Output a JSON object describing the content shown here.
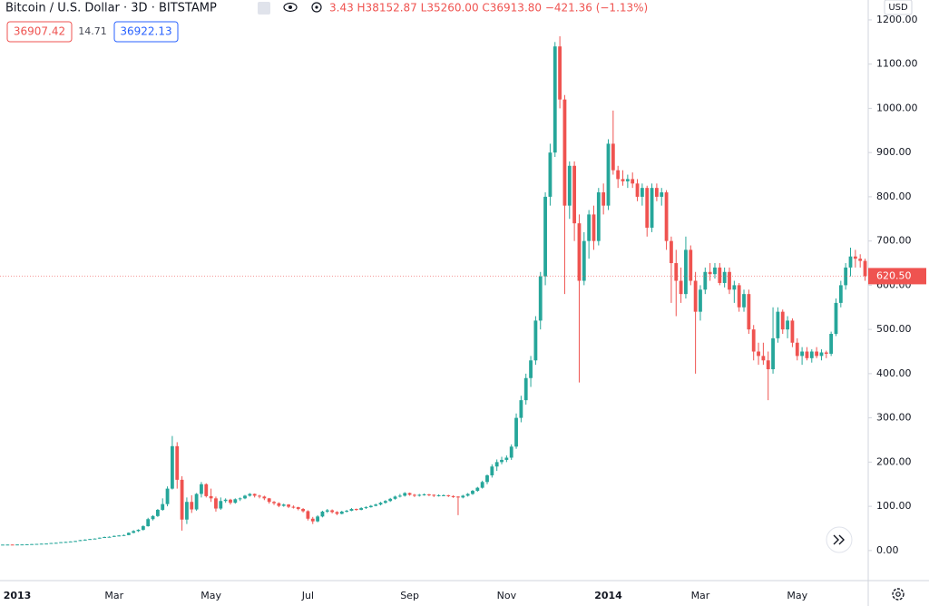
{
  "header": {
    "symbol": "Bitcoin / U.S. Dollar · 3D · BITSTAMP",
    "ohlc": "3.43 H38152.87 L35260.00 C36913.80 −421.36 (−1.13%)",
    "bid": "36907.42",
    "spread": "14.71",
    "ask": "36922.13",
    "currency": "USD"
  },
  "chart_data": {
    "type": "candlestick",
    "up_color": "#26a69a",
    "down_color": "#ef5350",
    "ylim": [
      -68,
      1245
    ],
    "yticks": [
      {
        "value": 0,
        "label": "0.00"
      },
      {
        "value": 100,
        "label": "100.00"
      },
      {
        "value": 200,
        "label": "200.00"
      },
      {
        "value": 300,
        "label": "300.00"
      },
      {
        "value": 400,
        "label": "400.00"
      },
      {
        "value": 500,
        "label": "500.00"
      },
      {
        "value": 600,
        "label": "600.00"
      },
      {
        "value": 700,
        "label": "700.00"
      },
      {
        "value": 800,
        "label": "800.00"
      },
      {
        "value": 900,
        "label": "900.00"
      },
      {
        "value": 1000,
        "label": "1000.00"
      },
      {
        "value": 1100,
        "label": "1100.00"
      },
      {
        "value": 1200,
        "label": "1200.00"
      }
    ],
    "last_price": {
      "value": 620.5,
      "label": "620.50"
    },
    "categories": [
      null,
      null,
      null,
      "2013",
      null,
      null,
      null,
      null,
      null,
      null,
      null,
      null,
      null,
      null,
      null,
      null,
      null,
      null,
      null,
      null,
      null,
      null,
      null,
      "Mar",
      null,
      null,
      null,
      null,
      null,
      null,
      null,
      null,
      null,
      null,
      null,
      null,
      null,
      null,
      null,
      null,
      null,
      null,
      null,
      "May",
      null,
      null,
      null,
      null,
      null,
      null,
      null,
      null,
      null,
      null,
      null,
      null,
      null,
      null,
      null,
      null,
      null,
      null,
      null,
      "Jul",
      null,
      null,
      null,
      null,
      null,
      null,
      null,
      null,
      null,
      null,
      null,
      null,
      null,
      null,
      null,
      null,
      null,
      null,
      null,
      null,
      "Sep",
      null,
      null,
      null,
      null,
      null,
      null,
      null,
      null,
      null,
      null,
      null,
      null,
      null,
      null,
      null,
      null,
      null,
      null,
      null,
      "Nov",
      null,
      null,
      null,
      null,
      null,
      null,
      null,
      null,
      null,
      null,
      null,
      null,
      null,
      null,
      null,
      null,
      null,
      null,
      null,
      null,
      "2014",
      null,
      null,
      null,
      null,
      null,
      null,
      null,
      null,
      null,
      null,
      null,
      null,
      null,
      null,
      null,
      null,
      null,
      null,
      "Mar",
      null,
      null,
      null,
      null,
      null,
      null,
      null,
      null,
      null,
      null,
      null,
      null,
      null,
      null,
      null,
      null,
      null,
      null,
      null,
      "May",
      null,
      null,
      null,
      null,
      null,
      null,
      null,
      null,
      null,
      null,
      null,
      null,
      null,
      null
    ],
    "ohlc": [
      [
        13.3,
        13.6,
        13.2,
        13.4
      ],
      [
        13.4,
        13.6,
        13.3,
        13.5
      ],
      [
        13.5,
        13.6,
        13.2,
        13.4
      ],
      [
        13.4,
        13.8,
        13.3,
        13.7
      ],
      [
        13.7,
        13.9,
        13.5,
        13.8
      ],
      [
        13.8,
        14.3,
        13.7,
        14.2
      ],
      [
        14.2,
        14.7,
        14.1,
        14.6
      ],
      [
        14.6,
        15.1,
        14.4,
        15.0
      ],
      [
        15.0,
        15.7,
        14.9,
        15.5
      ],
      [
        15.5,
        16.0,
        15.3,
        15.8
      ],
      [
        15.8,
        17.2,
        15.7,
        17.0
      ],
      [
        17.0,
        17.9,
        16.8,
        17.5
      ],
      [
        17.5,
        19.2,
        17.3,
        18.9
      ],
      [
        18.9,
        20.0,
        18.5,
        19.5
      ],
      [
        19.5,
        20.8,
        19.3,
        20.5
      ],
      [
        20.5,
        22.0,
        20.2,
        21.5
      ],
      [
        21.5,
        24.0,
        21.3,
        23.5
      ],
      [
        23.5,
        25.5,
        23.0,
        24.6
      ],
      [
        24.6,
        26.5,
        24.3,
        26.0
      ],
      [
        26.0,
        27.5,
        25.5,
        27.0
      ],
      [
        27.0,
        29.5,
        26.8,
        29.0
      ],
      [
        29.0,
        31.5,
        28.5,
        30.5
      ],
      [
        30.5,
        32.0,
        29.5,
        31.0
      ],
      [
        31.0,
        34.0,
        30.5,
        33.0
      ],
      [
        33.0,
        35.0,
        32.0,
        34.0
      ],
      [
        34.0,
        36.0,
        33.0,
        35.0
      ],
      [
        35.0,
        41.0,
        34.5,
        40.0
      ],
      [
        40.0,
        46.0,
        39.0,
        44.0
      ],
      [
        44.0,
        48.0,
        42.0,
        47.0
      ],
      [
        47.0,
        57.0,
        45.0,
        55.0
      ],
      [
        55.0,
        74.0,
        54.0,
        71.0
      ],
      [
        71.0,
        80.0,
        68.0,
        78.0
      ],
      [
        78.0,
        94.0,
        76.0,
        92.0
      ],
      [
        92,
        118,
        90,
        105
      ],
      [
        105,
        145,
        100,
        140
      ],
      [
        140,
        259,
        138,
        236
      ],
      [
        236,
        245,
        140,
        160
      ],
      [
        160,
        168,
        45,
        70
      ],
      [
        70,
        120,
        60,
        110
      ],
      [
        110,
        125,
        85,
        93
      ],
      [
        93,
        130,
        90,
        128
      ],
      [
        128,
        155,
        120,
        150
      ],
      [
        150,
        152,
        120,
        123
      ],
      [
        123,
        140,
        110,
        118
      ],
      [
        118,
        122,
        88,
        95
      ],
      [
        95,
        120,
        92,
        112
      ],
      [
        112,
        118,
        108,
        115
      ],
      [
        115,
        117,
        104,
        108
      ],
      [
        108,
        118,
        106,
        116
      ],
      [
        116,
        120,
        112,
        118
      ],
      [
        118,
        126,
        116,
        124
      ],
      [
        124,
        130,
        122,
        128
      ],
      [
        128,
        129,
        120,
        124
      ],
      [
        124,
        126,
        118,
        122
      ],
      [
        122,
        124,
        114,
        118
      ],
      [
        118,
        119,
        106,
        110
      ],
      [
        110,
        112,
        103,
        107
      ],
      [
        107,
        109,
        98,
        101
      ],
      [
        101,
        106,
        99,
        104
      ],
      [
        104,
        105,
        96,
        99
      ],
      [
        99,
        102,
        95,
        98
      ],
      [
        98,
        99,
        91,
        94
      ],
      [
        94,
        96,
        86,
        89
      ],
      [
        89,
        91,
        68,
        72
      ],
      [
        72,
        76,
        60,
        66
      ],
      [
        66,
        80,
        64,
        77
      ],
      [
        77,
        90,
        75,
        88
      ],
      [
        88,
        94,
        85,
        91
      ],
      [
        91,
        93,
        84,
        87
      ],
      [
        87,
        89,
        80,
        83
      ],
      [
        83,
        90,
        82,
        88
      ],
      [
        88,
        92,
        86,
        90
      ],
      [
        90,
        96,
        89,
        94
      ],
      [
        94,
        95,
        90,
        92
      ],
      [
        92,
        98,
        91,
        96
      ],
      [
        96,
        100,
        94,
        98
      ],
      [
        98,
        103,
        97,
        101
      ],
      [
        101,
        106,
        100,
        104
      ],
      [
        104,
        110,
        102,
        108
      ],
      [
        108,
        114,
        106,
        112
      ],
      [
        112,
        119,
        110,
        117
      ],
      [
        117,
        124,
        115,
        122
      ],
      [
        122,
        128,
        120,
        124
      ],
      [
        124,
        132,
        122,
        130
      ],
      [
        130,
        131,
        124,
        126
      ],
      [
        126,
        128,
        121,
        124
      ],
      [
        124,
        128,
        122,
        126
      ],
      [
        126,
        129,
        124,
        127
      ],
      [
        127,
        128,
        123,
        126
      ],
      [
        126,
        127,
        121,
        124
      ],
      [
        124,
        127,
        122,
        125
      ],
      [
        125,
        127,
        123,
        125
      ],
      [
        125,
        126,
        121,
        123
      ],
      [
        123,
        125,
        119,
        122
      ],
      [
        122,
        123,
        80,
        120
      ],
      [
        120,
        126,
        118,
        124
      ],
      [
        124,
        130,
        122,
        128
      ],
      [
        128,
        137,
        126,
        135
      ],
      [
        135,
        144,
        133,
        142
      ],
      [
        142,
        158,
        140,
        155
      ],
      [
        155,
        172,
        150,
        170
      ],
      [
        170,
        195,
        165,
        190
      ],
      [
        190,
        206,
        180,
        200
      ],
      [
        200,
        212,
        195,
        205
      ],
      [
        205,
        215,
        200,
        210
      ],
      [
        210,
        240,
        205,
        235
      ],
      [
        235,
        310,
        230,
        300
      ],
      [
        300,
        350,
        290,
        340
      ],
      [
        340,
        400,
        330,
        390
      ],
      [
        390,
        440,
        370,
        430
      ],
      [
        430,
        530,
        420,
        520
      ],
      [
        520,
        630,
        500,
        620
      ],
      [
        620,
        810,
        600,
        800
      ],
      [
        800,
        920,
        780,
        900
      ],
      [
        900,
        1150,
        890,
        1140
      ],
      [
        1140,
        1163,
        1000,
        1020
      ],
      [
        1020,
        1030,
        580,
        780
      ],
      [
        780,
        880,
        750,
        870
      ],
      [
        870,
        880,
        700,
        740
      ],
      [
        740,
        760,
        380,
        610
      ],
      [
        610,
        720,
        600,
        700
      ],
      [
        700,
        770,
        660,
        760
      ],
      [
        760,
        780,
        680,
        700
      ],
      [
        700,
        820,
        690,
        810
      ],
      [
        810,
        830,
        760,
        780
      ],
      [
        780,
        930,
        770,
        920
      ],
      [
        920,
        995,
        850,
        860
      ],
      [
        860,
        870,
        820,
        840
      ],
      [
        840,
        860,
        825,
        835
      ],
      [
        835,
        850,
        820,
        840
      ],
      [
        840,
        855,
        820,
        830
      ],
      [
        830,
        840,
        790,
        800
      ],
      [
        800,
        830,
        780,
        820
      ],
      [
        820,
        825,
        710,
        730
      ],
      [
        730,
        830,
        720,
        820
      ],
      [
        820,
        830,
        790,
        800
      ],
      [
        800,
        820,
        780,
        810
      ],
      [
        810,
        815,
        680,
        700
      ],
      [
        700,
        710,
        560,
        650
      ],
      [
        650,
        680,
        530,
        610
      ],
      [
        610,
        640,
        560,
        580
      ],
      [
        580,
        710,
        570,
        680
      ],
      [
        680,
        690,
        600,
        610
      ],
      [
        610,
        630,
        400,
        540
      ],
      [
        540,
        600,
        520,
        590
      ],
      [
        590,
        640,
        580,
        630
      ],
      [
        630,
        650,
        610,
        625
      ],
      [
        625,
        650,
        615,
        640
      ],
      [
        640,
        650,
        600,
        605
      ],
      [
        605,
        640,
        595,
        630
      ],
      [
        630,
        640,
        580,
        590
      ],
      [
        590,
        610,
        560,
        600
      ],
      [
        600,
        605,
        540,
        550
      ],
      [
        550,
        590,
        540,
        580
      ],
      [
        580,
        590,
        490,
        500
      ],
      [
        500,
        510,
        430,
        450
      ],
      [
        450,
        470,
        420,
        440
      ],
      [
        440,
        470,
        420,
        430
      ],
      [
        430,
        450,
        340,
        410
      ],
      [
        410,
        550,
        400,
        480
      ],
      [
        480,
        550,
        470,
        540
      ],
      [
        540,
        545,
        490,
        500
      ],
      [
        500,
        530,
        480,
        520
      ],
      [
        520,
        525,
        460,
        470
      ],
      [
        470,
        480,
        430,
        440
      ],
      [
        440,
        460,
        420,
        450
      ],
      [
        450,
        460,
        430,
        435
      ],
      [
        435,
        455,
        425,
        450
      ],
      [
        450,
        460,
        435,
        440
      ],
      [
        440,
        455,
        430,
        448
      ],
      [
        448,
        452,
        435,
        445
      ],
      [
        445,
        495,
        440,
        490
      ],
      [
        490,
        570,
        485,
        560
      ],
      [
        560,
        610,
        550,
        600
      ],
      [
        600,
        650,
        590,
        640
      ],
      [
        640,
        685,
        620,
        665
      ],
      [
        665,
        680,
        640,
        660
      ],
      [
        660,
        670,
        640,
        655
      ],
      [
        655,
        660,
        610,
        620.5
      ]
    ]
  }
}
